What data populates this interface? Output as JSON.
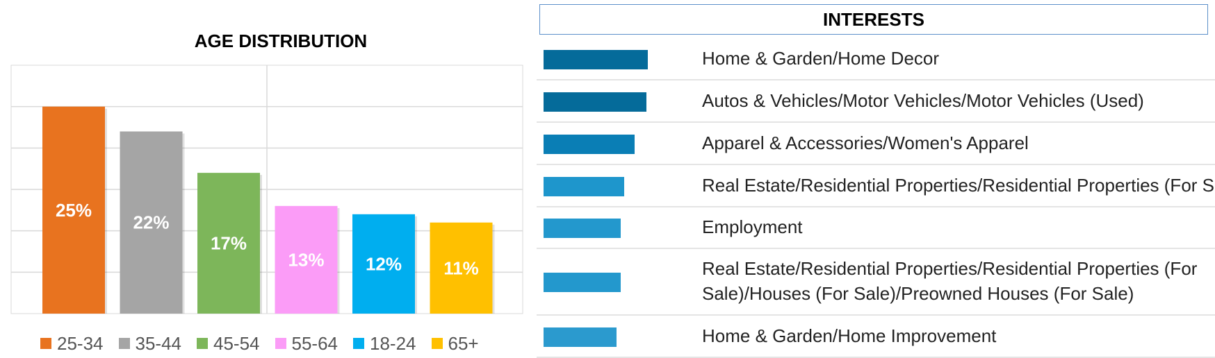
{
  "chart_data": [
    {
      "type": "bar",
      "title": "AGE DISTRIBUTION",
      "categories": [
        "25-34",
        "35-44",
        "45-54",
        "55-64",
        "18-24",
        "65+"
      ],
      "values": [
        25,
        22,
        17,
        13,
        12,
        11
      ],
      "value_labels": [
        "25%",
        "22%",
        "17%",
        "13%",
        "12%",
        "11%"
      ],
      "colors": [
        "#e8731f",
        "#a5a5a5",
        "#7db65a",
        "#fb9cf7",
        "#00aeef",
        "#ffc000"
      ],
      "ylim": [
        0,
        30
      ],
      "grid": true,
      "legend": "bottom",
      "legend_entries": [
        "25-34",
        "35-44",
        "45-54",
        "55-64",
        "18-24",
        "65+"
      ]
    },
    {
      "type": "bar",
      "orientation": "horizontal",
      "title": "INTERESTS",
      "categories": [
        "Home & Garden/Home Decor",
        "Autos & Vehicles/Motor Vehicles/Motor Vehicles (Used)",
        "Apparel & Accessories/Women's Apparel",
        "Real Estate/Residential Properties/Residential Properties (For Sale)",
        "Employment",
        "Real Estate/Residential Properties/Residential Properties (For Sale)/Houses (For Sale)/Preowned Houses (For Sale)",
        "Home & Garden/Home Improvement"
      ],
      "label_lines": [
        [
          "Home & Garden/Home Decor"
        ],
        [
          "Autos & Vehicles/Motor Vehicles/Motor Vehicles (Used)"
        ],
        [
          "Apparel & Accessories/Women's Apparel"
        ],
        [
          "Real Estate/Residential Properties/Residential Properties (For Sale)"
        ],
        [
          "Employment"
        ],
        [
          "Real Estate/Residential Properties/Residential Properties (For",
          "Sale)/Houses (For Sale)/Preowned Houses (For Sale)"
        ],
        [
          "Home & Garden/Home Improvement"
        ]
      ],
      "values": [
        1.0,
        0.985,
        0.87,
        0.77,
        0.74,
        0.74,
        0.7
      ],
      "colors": [
        "#056b9a",
        "#056b9a",
        "#0a7eb5",
        "#1e96cc",
        "#2398cd",
        "#2398cd",
        "#2b9ace"
      ]
    }
  ]
}
